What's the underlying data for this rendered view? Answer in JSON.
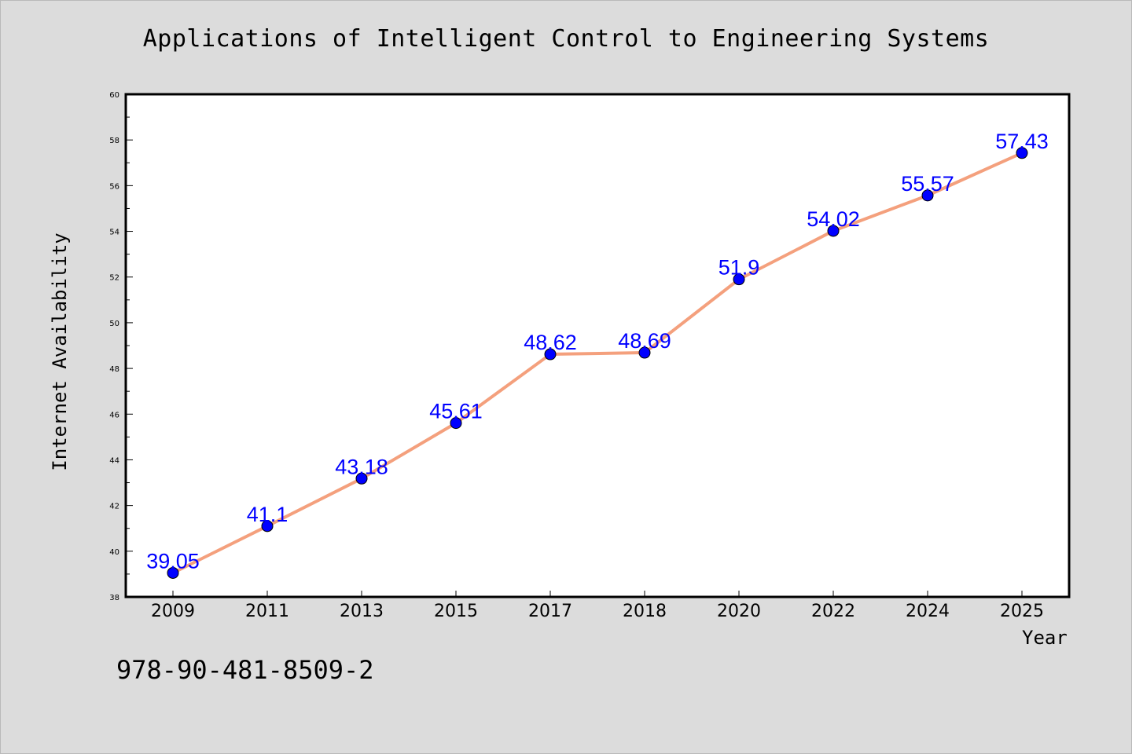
{
  "chart_data": {
    "type": "line",
    "title": "Applications of Intelligent Control to Engineering Systems",
    "xlabel": "Year",
    "ylabel": "Internet Availability",
    "categories": [
      "2009",
      "2011",
      "2013",
      "2015",
      "2017",
      "2018",
      "2020",
      "2022",
      "2024",
      "2025"
    ],
    "series": [
      {
        "values": [
          39.05,
          41.1,
          43.18,
          45.61,
          48.62,
          48.69,
          51.9,
          54.02,
          55.57,
          57.43
        ],
        "labels": [
          "39.05",
          "41.1",
          "43.18",
          "45.61",
          "48.62",
          "48.69",
          "51.9",
          "54.02",
          "55.57",
          "57.43"
        ]
      }
    ],
    "ylim": [
      38,
      60
    ],
    "yticks": [
      "38",
      "40",
      "42",
      "44",
      "46",
      "48",
      "50",
      "52",
      "54",
      "56",
      "58",
      "60"
    ],
    "grid": false,
    "line_color": "#f4a07d",
    "marker_color": "#0000ff",
    "label_color": "#0000ff",
    "background_color": "#dcdcdc",
    "plot_background": "#ffffff"
  },
  "footer": {
    "isbn": "978-90-481-8509-2"
  }
}
